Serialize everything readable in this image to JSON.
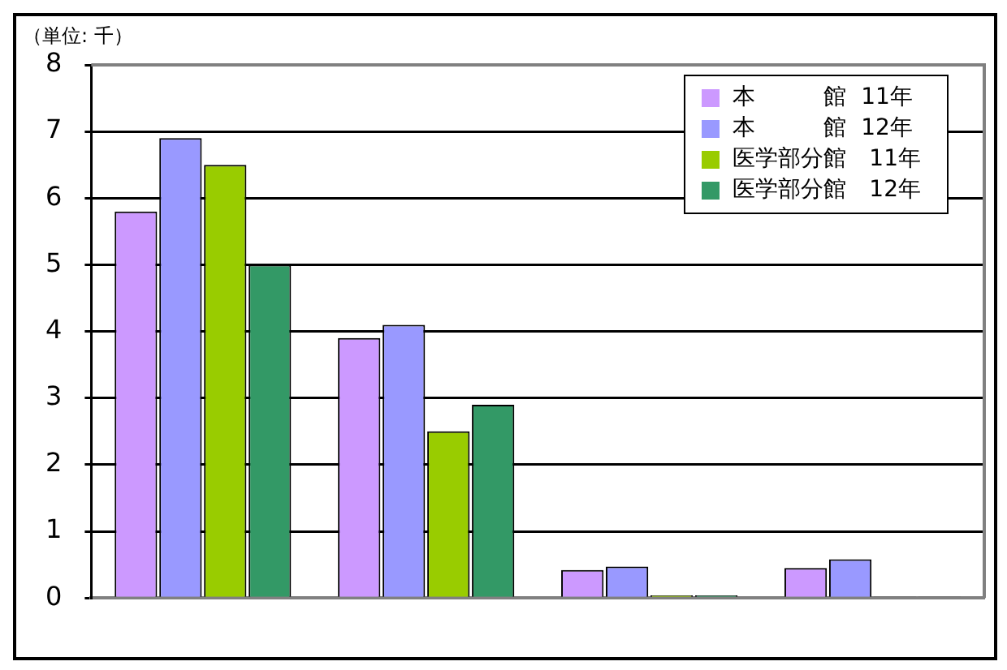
{
  "chart_data": {
    "type": "bar",
    "annotations": [
      "（単位: 千）"
    ],
    "categories": [
      null,
      null,
      null,
      null
    ],
    "series": [
      {
        "name": "本　　　館  11年",
        "color": "#cc99ff",
        "values": [
          5.8,
          3.9,
          0.42,
          0.45
        ]
      },
      {
        "name": "本　　　館  12年",
        "color": "#9999ff",
        "values": [
          6.9,
          4.1,
          0.47,
          0.58
        ]
      },
      {
        "name": "医学部分館　11年",
        "color": "#99cc00",
        "values": [
          6.5,
          2.5,
          0.04,
          0.02
        ]
      },
      {
        "name": "医学部分館　12年",
        "color": "#339966",
        "values": [
          5.0,
          2.9,
          0.04,
          0.02
        ]
      }
    ],
    "ylim": [
      0,
      8
    ],
    "yticks": [
      0,
      1,
      2,
      3,
      4,
      5,
      6,
      7,
      8
    ],
    "grid": "y",
    "legend": "top right"
  }
}
